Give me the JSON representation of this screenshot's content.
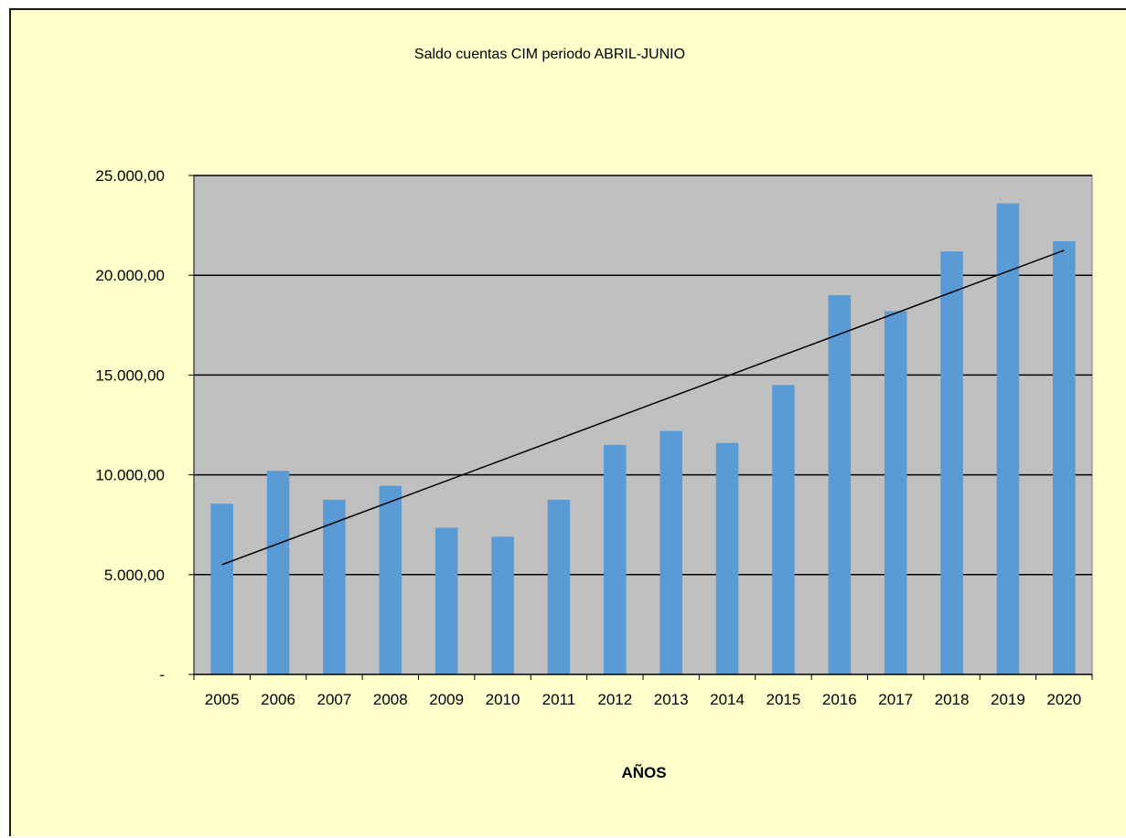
{
  "colors": {
    "chart_background": "#ffffcc",
    "plot_background": "#c0c0c0",
    "bar_fill": "#5b9bd5",
    "gridline": "#000000",
    "trendline": "#000000"
  },
  "chart_data": {
    "type": "bar",
    "title": "Saldo cuentas CIM periodo ABRIL-JUNIO",
    "xlabel": "AÑOS",
    "ylabel": "",
    "categories": [
      "2005",
      "2006",
      "2007",
      "2008",
      "2009",
      "2010",
      "2011",
      "2012",
      "2013",
      "2014",
      "2015",
      "2016",
      "2017",
      "2018",
      "2019",
      "2020"
    ],
    "values": [
      8550,
      10200,
      8750,
      9450,
      7350,
      6900,
      8750,
      11500,
      12200,
      11600,
      14500,
      19000,
      18200,
      21200,
      23600,
      21700
    ],
    "ylim": [
      0,
      25000
    ],
    "yticks": [
      0,
      5000,
      10000,
      15000,
      20000,
      25000
    ],
    "ytick_labels": [
      "-",
      "5.000,00",
      "10.000,00",
      "15.000,00",
      "20.000,00",
      "25.000,00"
    ],
    "trendline": {
      "type": "linear",
      "start_value": 5500,
      "end_value": 21250
    },
    "grid": true,
    "legend": "none"
  }
}
